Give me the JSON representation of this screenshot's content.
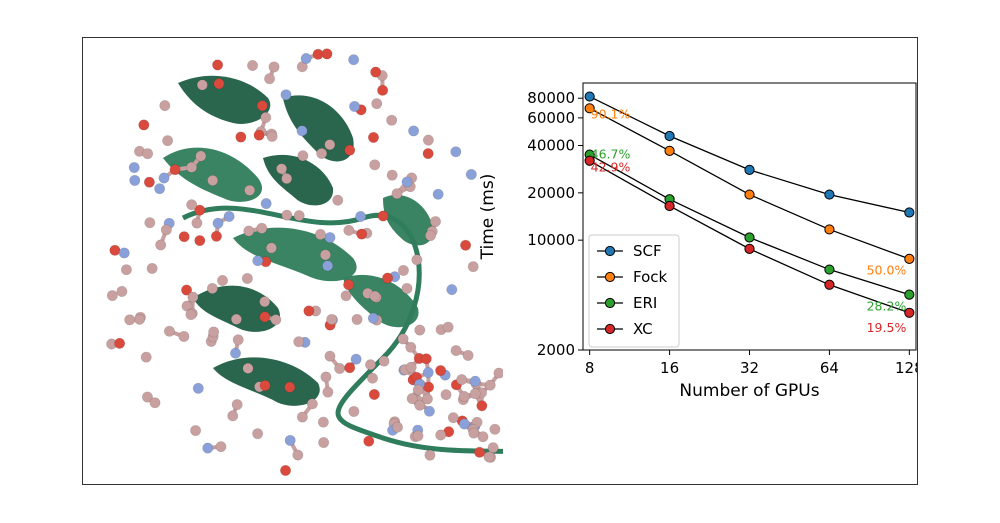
{
  "colors": {
    "ribbon": "#2f7d5c",
    "ribbon_dark": "#1f5e43",
    "atom_carbon": "#c9a0a0",
    "atom_oxygen": "#d94a3d",
    "atom_nitrogen": "#8aa0d8",
    "bond": "#c8a0a0"
  },
  "chart_data": {
    "type": "line",
    "title": "",
    "xlabel": "Number of GPUs",
    "ylabel": "Time (ms)",
    "x": [
      8,
      16,
      32,
      64,
      128
    ],
    "x_tick_labels": [
      "8",
      "16",
      "32",
      "64",
      "128"
    ],
    "xscale": "log2",
    "yscale": "log",
    "ylim": [
      2000,
      100000
    ],
    "y_ticks": [
      2000,
      10000,
      20000,
      40000,
      60000,
      80000
    ],
    "y_tick_labels": [
      "2000",
      "10000",
      "20000",
      "40000",
      "60000",
      "80000"
    ],
    "grid": false,
    "legend_position": "lower-left",
    "series": [
      {
        "name": "SCF",
        "color": "#1f77b4",
        "values": [
          82000,
          46000,
          28000,
          19500,
          15000
        ]
      },
      {
        "name": "Fock",
        "color": "#ff7f0e",
        "values": [
          69000,
          37000,
          19500,
          11700,
          7600
        ]
      },
      {
        "name": "ERI",
        "color": "#2ca02c",
        "values": [
          35000,
          18200,
          10400,
          6500,
          4500
        ]
      },
      {
        "name": "XC",
        "color": "#d62728",
        "values": [
          32000,
          16500,
          8800,
          5200,
          3450
        ]
      }
    ],
    "annotations": [
      {
        "text": "90.1%",
        "series": "Fock",
        "x": 8,
        "y": 64000,
        "color": "#ff7f0e"
      },
      {
        "text": "46.7%",
        "series": "ERI",
        "x": 8,
        "y": 35500,
        "color": "#2ca02c"
      },
      {
        "text": "42.9%",
        "series": "XC",
        "x": 8,
        "y": 29500,
        "color": "#d62728"
      },
      {
        "text": "50.0%",
        "series": "Fock",
        "x": 128,
        "y": 6500,
        "color": "#ff7f0e"
      },
      {
        "text": "28.2%",
        "series": "ERI",
        "x": 128,
        "y": 3850,
        "color": "#2ca02c"
      },
      {
        "text": "19.5%",
        "series": "XC",
        "x": 128,
        "y": 2800,
        "color": "#d62728"
      }
    ]
  }
}
